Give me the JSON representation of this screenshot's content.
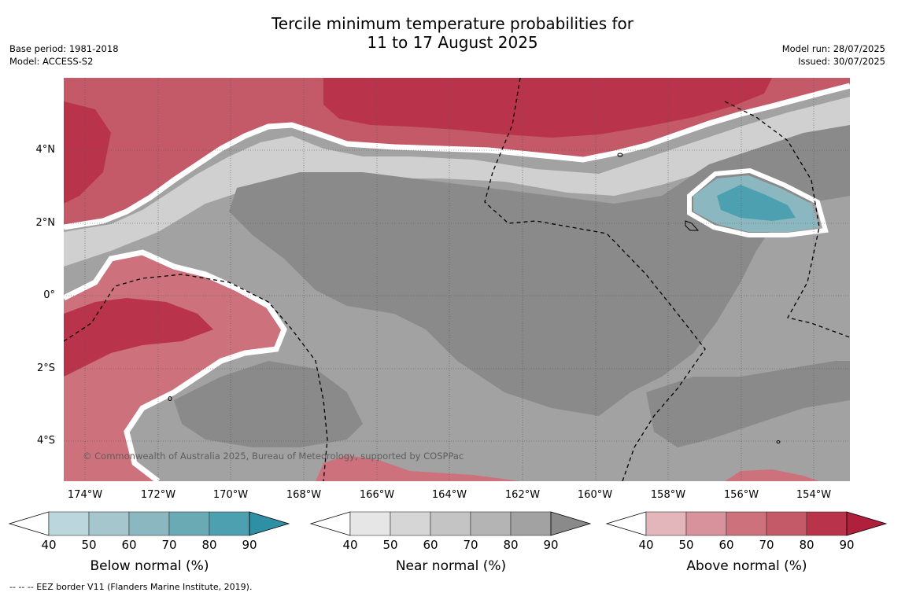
{
  "title_line1": "Tercile minimum temperature probabilities for",
  "title_line2": "11 to 17 August 2025",
  "base_period": "Base period: 1981-2018",
  "model": "Model: ACCESS-S2",
  "model_run": "Model run: 28/07/2025",
  "issued": "Issued: 30/07/2025",
  "copyright": "© Commonwealth of Australia 2025, Bureau of Meteorology, supported by COSPPac",
  "footnote": "--  --  -- EEZ border V11 (Flanders Marine Institute, 2019).",
  "lat_labels": [
    "4°N",
    "2°N",
    "0°",
    "2°S",
    "4°S"
  ],
  "lon_labels": [
    "174°W",
    "172°W",
    "170°W",
    "168°W",
    "166°W",
    "164°W",
    "162°W",
    "160°W",
    "158°W",
    "156°W",
    "154°W"
  ],
  "colorbars": [
    {
      "title": "Below normal (%)",
      "ticks": [
        "40",
        "50",
        "60",
        "70",
        "80",
        "90"
      ],
      "colors": [
        "#bcd6dd",
        "#a5c6cc",
        "#8bb8c0",
        "#6aaab5",
        "#4da0b0",
        "#2e90a4"
      ]
    },
    {
      "title": "Near normal (%)",
      "ticks": [
        "40",
        "50",
        "60",
        "70",
        "80",
        "90"
      ],
      "colors": [
        "#e6e6e6",
        "#d6d6d6",
        "#c4c4c4",
        "#b4b4b4",
        "#a2a2a2",
        "#8a8a8a"
      ]
    },
    {
      "title": "Above normal (%)",
      "ticks": [
        "40",
        "50",
        "60",
        "70",
        "80",
        "90"
      ],
      "colors": [
        "#e3b6bc",
        "#d8929b",
        "#cd727c",
        "#c45a67",
        "#b9344a",
        "#b01f3c"
      ]
    }
  ],
  "colors": {
    "near_70": "#b4b4b4",
    "near_80": "#a2a2a2",
    "near_90": "#8a8a8a",
    "near_60": "#c8c8c8",
    "near_50": "#d8d8d8",
    "above_50": "#d8929b",
    "above_60": "#cd727c",
    "above_70": "#c45a67",
    "above_80": "#b9344a",
    "below_60": "#8bb8c0",
    "below_70": "#6aaab5",
    "below_80": "#4da0b0"
  }
}
